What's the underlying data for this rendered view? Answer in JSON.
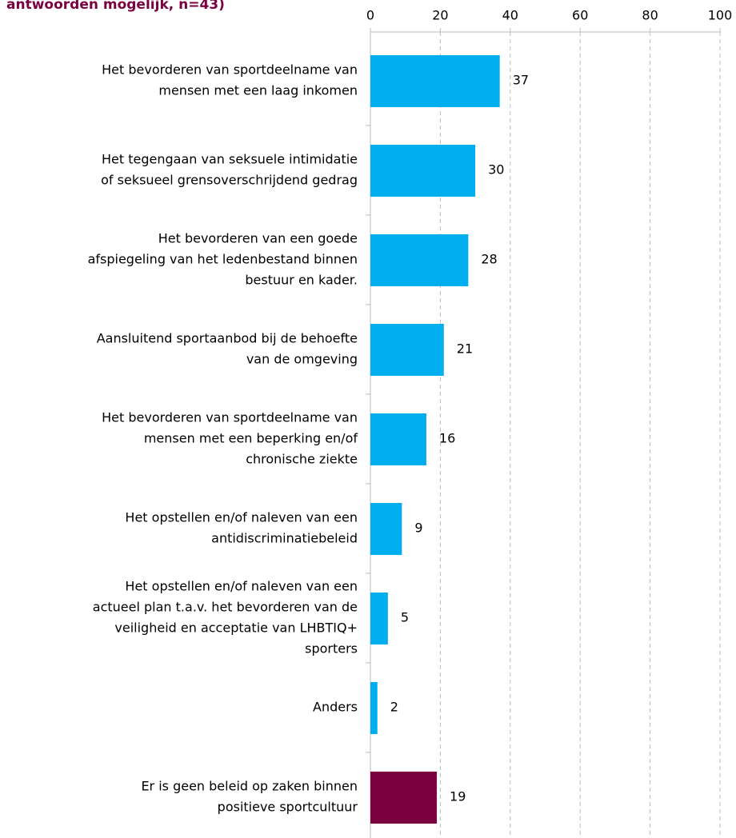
{
  "chart_data": {
    "type": "barh",
    "title": "antwoorden mogelijk, n=43)",
    "categories": [
      [
        "Het bevorderen van sportdeelname van",
        "mensen met een laag inkomen"
      ],
      [
        "Het tegengaan van seksuele intimidatie",
        "of seksueel grensoverschrijdend gedrag"
      ],
      [
        "Het bevorderen van een goede",
        "afspiegeling van het ledenbestand binnen",
        "bestuur en kader."
      ],
      [
        "Aansluitend sportaanbod bij de behoefte",
        "van de omgeving"
      ],
      [
        "Het bevorderen van sportdeelname van",
        "mensen met een beperking en/of",
        "chronische ziekte"
      ],
      [
        "Het opstellen en/of naleven van een",
        "antidiscriminatiebeleid"
      ],
      [
        "Het opstellen en/of naleven van een",
        "actueel plan t.a.v. het bevorderen van de",
        "veiligheid en acceptatie van LHBTIQ+",
        "sporters"
      ],
      [
        "Anders"
      ],
      [
        "Er is geen beleid op zaken binnen",
        "positieve sportcultuur"
      ]
    ],
    "values": [
      37,
      30,
      28,
      21,
      16,
      9,
      5,
      2,
      19
    ],
    "colors": [
      "#00adef",
      "#00adef",
      "#00adef",
      "#00adef",
      "#00adef",
      "#00adef",
      "#00adef",
      "#00adef",
      "#7a0040"
    ],
    "xlim": [
      0,
      100
    ],
    "xticks": [
      0,
      20,
      40,
      60,
      80,
      100
    ],
    "grid": true
  }
}
